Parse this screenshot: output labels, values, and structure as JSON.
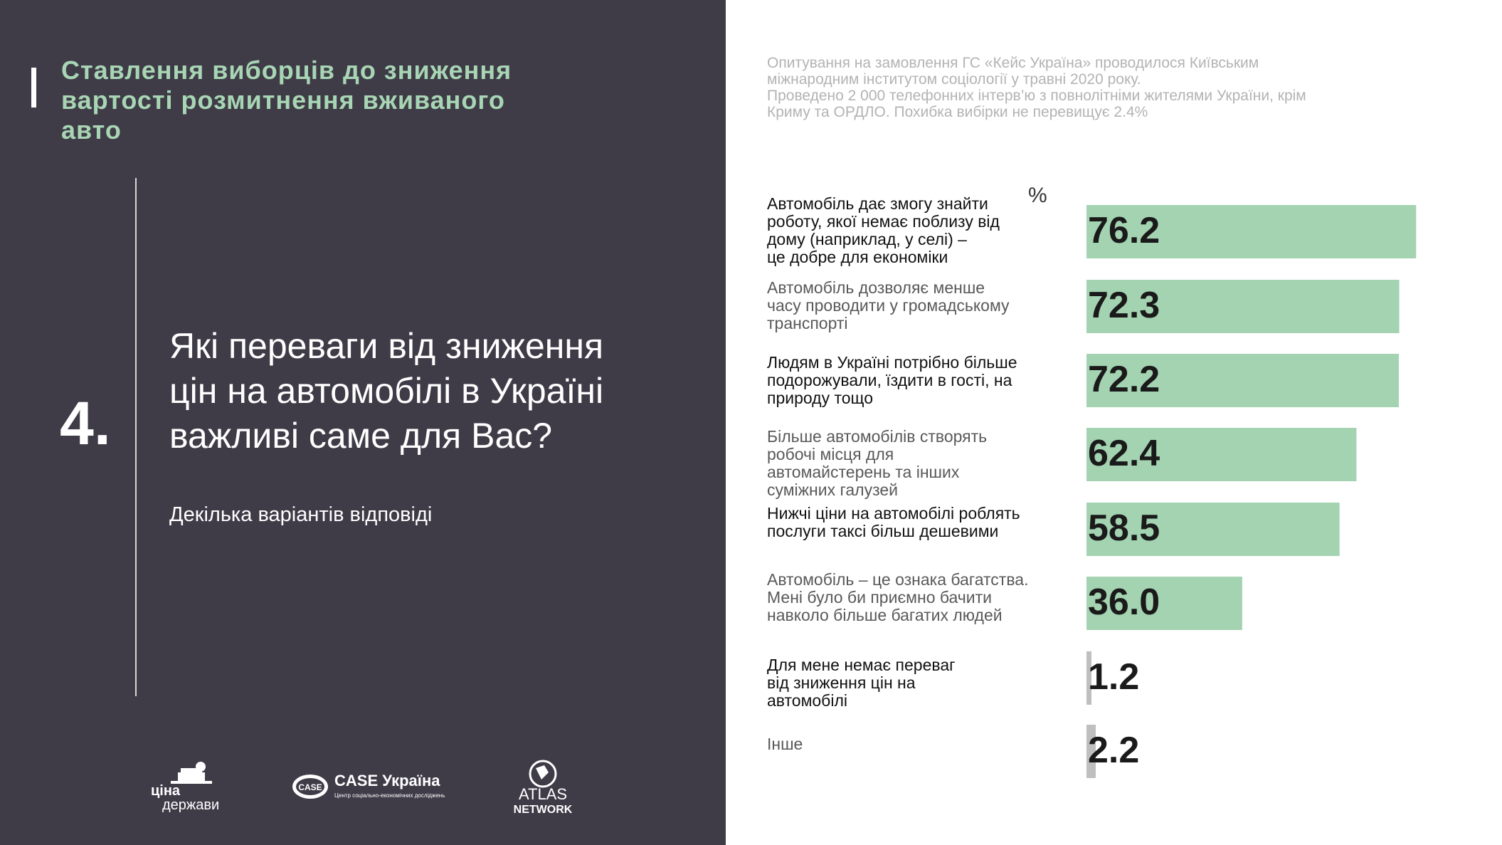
{
  "header": {
    "title": "Ставлення виборців до зниження\nвартості розмитнення вживаного\nавто"
  },
  "question": {
    "number": "4.",
    "text": "Які переваги від зниження\nцін на автомобілі в Україні\nважливі саме для Вас?",
    "subtitle": "Декілька варіантів відповіді"
  },
  "survey_note": "Опитування на замовлення ГС «Кейс Україна» проводилося Київським\nміжнародним інститутом соціології у травні 2020 року.\nПроведено 2 000 телефонних інтерв’ю з повнолітніми жителями України, крім\nКриму та ОРДЛО. Похибка вибірки не перевищує 2.4%",
  "logos": {
    "cina_line1": "ціна",
    "cina_line2": "держави",
    "case_badge": "CASE",
    "case_name": "CASE Україна",
    "case_tagline": "Центр соціально-економічних досліджень",
    "atlas_line1": "ATLAS",
    "atlas_line2": "NETWORK"
  },
  "colors": {
    "panel_bg": "#3f3c48",
    "title_green": "#a8d5b4",
    "bar_green": "#a3d3b1",
    "bar_gray": "#bfbfbf"
  },
  "chart_data": {
    "type": "bar",
    "orientation": "horizontal",
    "unit_label": "%",
    "xlim": [
      0,
      100
    ],
    "categories": [
      "Автомобіль дає змогу знайти\nроботу, якої немає поблизу від\nдому (наприклад, у селі) –\nце добре для економіки",
      "Автомобіль дозволяє менше\nчасу  проводити у громадському\nтранспорті",
      "Людям в Україні потрібно більше\nподорожували, їздити в гості, на\nприроду тощо",
      "Більше автомобілів створять\nробочі місця для\nавтомайстерень  та інших\nсуміжних галузей",
      "Нижчі ціни на автомобілі роблять\nпослуги таксі більш дешевими",
      "Автомобіль – це ознака багатства.\nМені було би приємно бачити\nнавколо більше багатих людей",
      "Для мене немає переваг\nвід  зниження цін на\nавтомобілі",
      "Інше"
    ],
    "values": [
      76.2,
      72.3,
      72.2,
      62.4,
      58.5,
      36.0,
      1.2,
      2.2
    ],
    "value_labels": [
      "76.2",
      "72.3",
      "72.2",
      "62.4",
      "58.5",
      "36.0",
      "1.2",
      "2.2"
    ],
    "bar_colors": [
      "green",
      "green",
      "green",
      "green",
      "green",
      "green",
      "gray",
      "gray"
    ],
    "label_colors": [
      "dark",
      "gray",
      "dark",
      "gray",
      "dark",
      "gray",
      "dark",
      "gray"
    ]
  }
}
